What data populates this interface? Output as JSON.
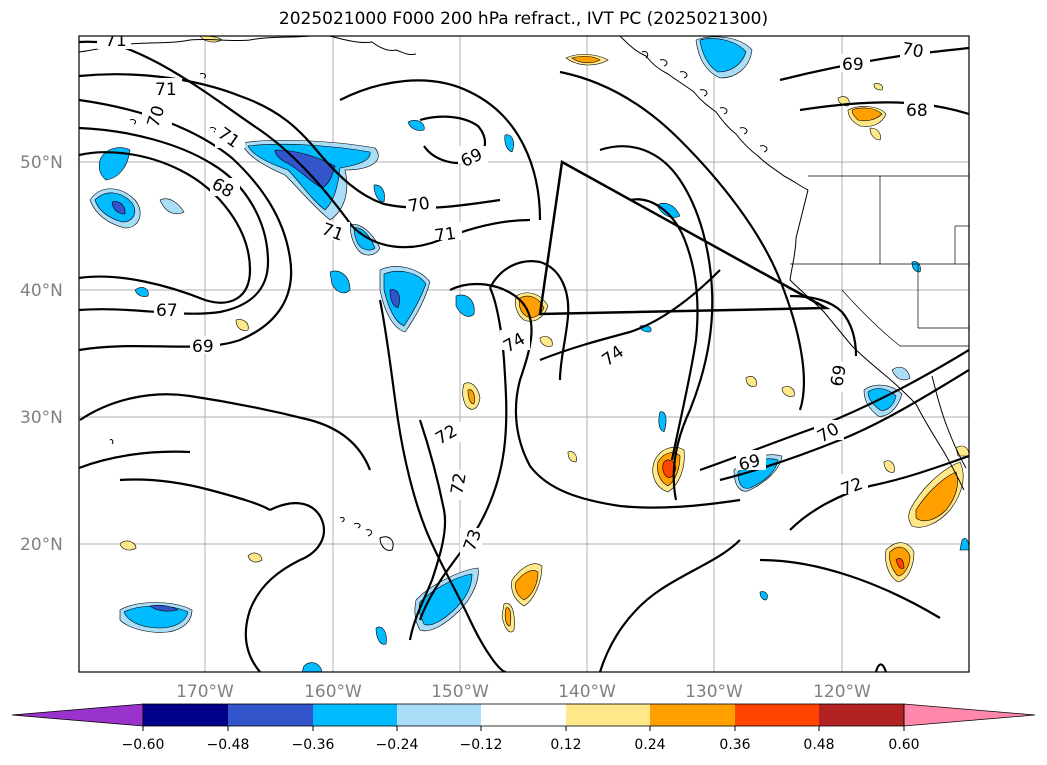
{
  "figure": {
    "title": "2025021000 F000 200 hPa refract., IVT PC (2025021300)"
  },
  "axes": {
    "lat_ticks": [
      "20°N",
      "30°N",
      "40°N",
      "50°N"
    ],
    "lon_ticks": [
      "170°W",
      "160°W",
      "150°W",
      "140°W",
      "130°W",
      "120°W"
    ],
    "grid": true
  },
  "contour_labels": [
    "71",
    "71",
    "70",
    "71",
    "68",
    "71",
    "69",
    "70",
    "71",
    "67",
    "69",
    "74",
    "74",
    "72",
    "72",
    "73",
    "69",
    "70",
    "72",
    "69",
    "70",
    "69",
    "68"
  ],
  "colorbar": {
    "tick_labels": [
      "−0.60",
      "−0.48",
      "−0.36",
      "−0.24",
      "−0.12",
      "0.12",
      "0.24",
      "0.36",
      "0.48",
      "0.60"
    ],
    "colors": [
      "#9933cc",
      "#000088",
      "#3355cc",
      "#00bbff",
      "#aaddf8",
      "#ffffff",
      "#ffe88a",
      "#ffa000",
      "#ff4500",
      "#b22222",
      "#ff88aa"
    ]
  },
  "shading_colors": {
    "neg_light": "#aaddf8",
    "neg_mid": "#00bbff",
    "neg_dark": "#3355cc",
    "pos_light": "#ffe88a",
    "pos_mid": "#ffa000",
    "pos_dark": "#ff4500"
  }
}
